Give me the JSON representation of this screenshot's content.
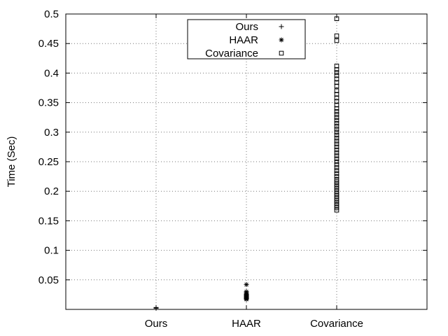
{
  "chart_data": {
    "type": "scatter",
    "title": "",
    "xlabel": "",
    "ylabel": "Time (Sec)",
    "ylim": [
      0,
      0.5
    ],
    "yticks": [
      0.05,
      0.1,
      0.15,
      0.2,
      0.25,
      0.3,
      0.35,
      0.4,
      0.45,
      0.5
    ],
    "ytick_labels": [
      "0.05",
      "0.1",
      "0.15",
      "0.2",
      "0.25",
      "0.3",
      "0.35",
      "0.4",
      "0.45",
      "0.5"
    ],
    "categories": [
      "Ours",
      "HAAR",
      "Covariance"
    ],
    "grid": true,
    "legend_position": "top-center",
    "series": [
      {
        "name": "Ours",
        "marker": "plus",
        "category": "Ours",
        "values": [
          0.002,
          0.0025,
          0.003,
          0.0028,
          0.0032,
          0.0022
        ]
      },
      {
        "name": "HAAR",
        "marker": "star",
        "category": "HAAR",
        "values": [
          0.042,
          0.03,
          0.028,
          0.026,
          0.025,
          0.024,
          0.023,
          0.022,
          0.021,
          0.02,
          0.019,
          0.018,
          0.017
        ]
      },
      {
        "name": "Covariance",
        "marker": "square",
        "category": "Covariance",
        "values": [
          0.492,
          0.463,
          0.455,
          0.412,
          0.406,
          0.401,
          0.396,
          0.39,
          0.384,
          0.378,
          0.37,
          0.364,
          0.358,
          0.352,
          0.346,
          0.34,
          0.335,
          0.33,
          0.325,
          0.32,
          0.315,
          0.31,
          0.305,
          0.3,
          0.295,
          0.29,
          0.285,
          0.28,
          0.275,
          0.27,
          0.265,
          0.26,
          0.255,
          0.25,
          0.245,
          0.24,
          0.235,
          0.23,
          0.225,
          0.22,
          0.216,
          0.212,
          0.208,
          0.204,
          0.2,
          0.196,
          0.192,
          0.188,
          0.184,
          0.18,
          0.176,
          0.172,
          0.168
        ]
      }
    ]
  }
}
